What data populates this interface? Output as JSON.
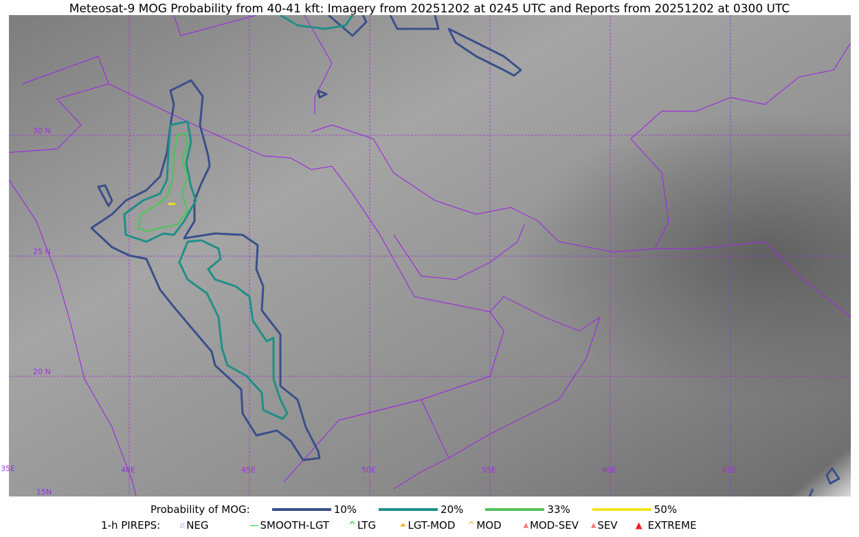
{
  "title": "Meteosat-9 MOG Probability from 40-41 kft: Imagery from 20251202 at 0245 UTC and Reports from 20251202 at 0300 UTC",
  "map": {
    "lat_labels": [
      "30 N",
      "25 N",
      "20 N",
      "15N"
    ],
    "lon_labels": [
      "35E",
      "40E",
      "45E",
      "50E",
      "55E",
      "60E",
      "65E"
    ],
    "border_color": "#9b30d9",
    "imagery": "infrared grayscale"
  },
  "legend": {
    "prob_title": "Probability of MOG:",
    "prob": [
      {
        "label": "10%",
        "color": "#3a4f8a"
      },
      {
        "label": "20%",
        "color": "#1f8f88"
      },
      {
        "label": "33%",
        "color": "#55c060"
      },
      {
        "label": "50%",
        "color": "#f5e11a"
      }
    ],
    "pirep_title": "1-h PIREPS:",
    "pireps": [
      {
        "label": "NEG",
        "icon": "neg-circle-icon",
        "color": "#c8c8f0"
      },
      {
        "label": "SMOOTH-LGT",
        "icon": "line-icon",
        "color": "#00e000"
      },
      {
        "label": "LTG",
        "icon": "caret-icon",
        "color": "#00d000"
      },
      {
        "label": "LGT-MOD",
        "icon": "caret-bar-icon",
        "color": "#f5b020"
      },
      {
        "label": "MOD",
        "icon": "caret-icon",
        "color": "#f5b020"
      },
      {
        "label": "MOD-SEV",
        "icon": "double-caret-icon",
        "color": "#f02020"
      },
      {
        "label": "SEV",
        "icon": "double-caret-icon",
        "color": "#f02020"
      },
      {
        "label": "EXTREME",
        "icon": "filled-triangle-icon",
        "color": "#f02020"
      }
    ]
  }
}
